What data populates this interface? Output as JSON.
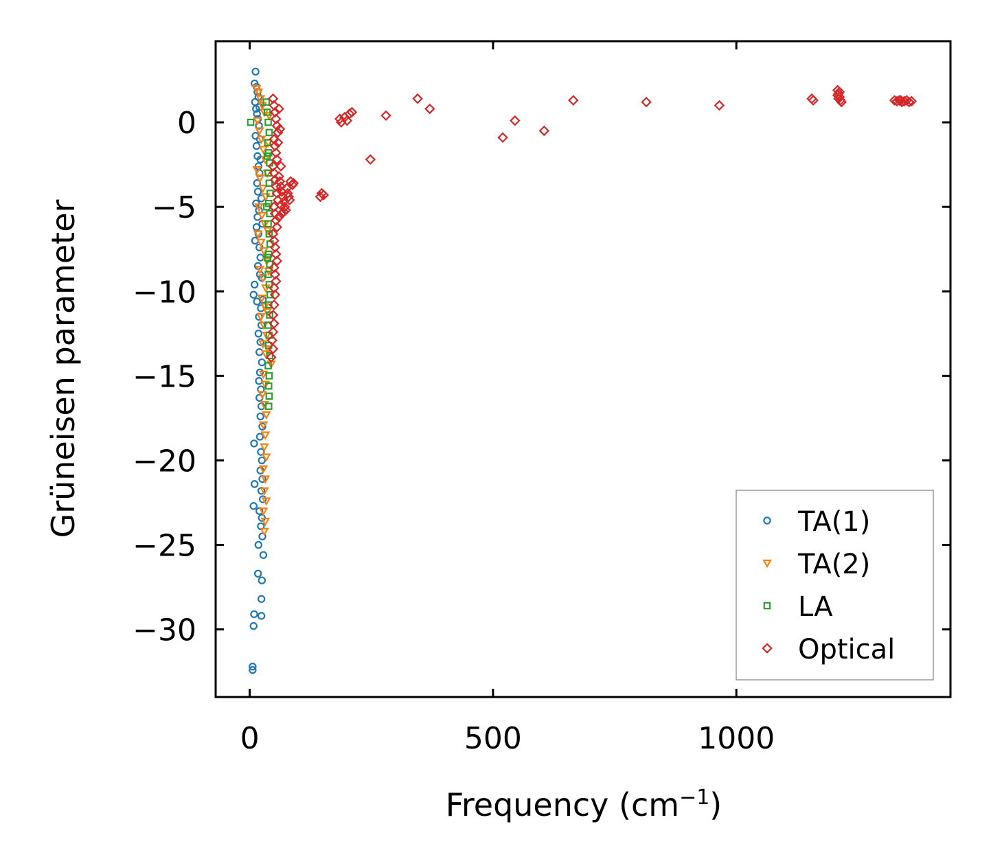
{
  "chart_data": {
    "type": "scatter",
    "title": "",
    "xlabel": "Frequency (cm",
    "xlabel_sup": "−1",
    "xlabel_close": ")",
    "ylabel": "Grüneisen parameter",
    "xlim": [
      -70,
      1440
    ],
    "ylim": [
      -34,
      4.8
    ],
    "x_ticks": [
      0,
      500,
      1000
    ],
    "x_tick_labels": [
      "0",
      "500",
      "1000"
    ],
    "y_ticks": [
      0,
      -5,
      -10,
      -15,
      -20,
      -25,
      -30
    ],
    "y_tick_labels": [
      "0",
      "−5",
      "−10",
      "−15",
      "−20",
      "−25",
      "−30"
    ],
    "legend_position": "lower-right",
    "series": [
      {
        "name": "TA(1)",
        "color": "#1f77b4",
        "marker": "circle",
        "points": [
          [
            12,
            3.0
          ],
          [
            10,
            2.3
          ],
          [
            14,
            2.1
          ],
          [
            16,
            1.8
          ],
          [
            18,
            1.5
          ],
          [
            11,
            1.2
          ],
          [
            13,
            0.8
          ],
          [
            15,
            0.5
          ],
          [
            17,
            0.2
          ],
          [
            19,
            -0.2
          ],
          [
            12,
            -0.8
          ],
          [
            14,
            -1.4
          ],
          [
            16,
            -2.0
          ],
          [
            18,
            -2.6
          ],
          [
            20,
            -3.0
          ],
          [
            15,
            -3.6
          ],
          [
            17,
            -4.1
          ],
          [
            13,
            -4.8
          ],
          [
            19,
            -5.2
          ],
          [
            16,
            -5.6
          ],
          [
            14,
            -6.2
          ],
          [
            18,
            -6.6
          ],
          [
            11,
            -7.0
          ],
          [
            20,
            -7.4
          ],
          [
            22,
            -8.0
          ],
          [
            17,
            -8.5
          ],
          [
            21,
            -9.0
          ],
          [
            10,
            -9.6
          ],
          [
            8,
            -10.2
          ],
          [
            15,
            -10.6
          ],
          [
            23,
            -11.0
          ],
          [
            19,
            -11.5
          ],
          [
            24,
            -12.0
          ],
          [
            18,
            -12.5
          ],
          [
            22,
            -13.0
          ],
          [
            20,
            -13.6
          ],
          [
            25,
            -14.2
          ],
          [
            21,
            -14.8
          ],
          [
            19,
            -15.3
          ],
          [
            23,
            -15.8
          ],
          [
            20,
            -16.3
          ],
          [
            24,
            -16.8
          ],
          [
            22,
            -17.4
          ],
          [
            26,
            -18.0
          ],
          [
            21,
            -18.6
          ],
          [
            9,
            -19.0
          ],
          [
            23,
            -19.5
          ],
          [
            25,
            -20.0
          ],
          [
            22,
            -20.6
          ],
          [
            26,
            -21.1
          ],
          [
            10,
            -21.4
          ],
          [
            24,
            -21.8
          ],
          [
            27,
            -22.3
          ],
          [
            8,
            -22.7
          ],
          [
            20,
            -23.0
          ],
          [
            25,
            -23.4
          ],
          [
            23,
            -23.9
          ],
          [
            26,
            -24.5
          ],
          [
            18,
            -25.0
          ],
          [
            28,
            -25.6
          ],
          [
            17,
            -26.7
          ],
          [
            25,
            -27.1
          ],
          [
            24,
            -28.2
          ],
          [
            9,
            -29.1
          ],
          [
            24,
            -29.2
          ],
          [
            8,
            -29.8
          ],
          [
            6,
            -32.2
          ],
          [
            6,
            -32.4
          ],
          [
            27,
            -10.5
          ],
          [
            25,
            -9.2
          ],
          [
            26,
            -6.0
          ],
          [
            24,
            -4.5
          ],
          [
            22,
            -2.2
          ],
          [
            20,
            0.9
          ],
          [
            21,
            -1.0
          ]
        ]
      },
      {
        "name": "TA(2)",
        "color": "#ff7f0e",
        "marker": "triangle-down",
        "points": [
          [
            14,
            2.0
          ],
          [
            18,
            1.8
          ],
          [
            22,
            1.4
          ],
          [
            26,
            1.0
          ],
          [
            30,
            0.6
          ],
          [
            16,
            0.1
          ],
          [
            20,
            -0.5
          ],
          [
            24,
            -1.0
          ],
          [
            28,
            -1.6
          ],
          [
            32,
            -2.2
          ],
          [
            15,
            -2.8
          ],
          [
            21,
            -3.3
          ],
          [
            27,
            -3.9
          ],
          [
            33,
            -4.4
          ],
          [
            19,
            -5.0
          ],
          [
            25,
            -5.5
          ],
          [
            31,
            -6.0
          ],
          [
            17,
            -6.6
          ],
          [
            23,
            -7.1
          ],
          [
            29,
            -7.6
          ],
          [
            35,
            -8.2
          ],
          [
            21,
            -8.7
          ],
          [
            27,
            -9.2
          ],
          [
            33,
            -9.8
          ],
          [
            25,
            -10.4
          ],
          [
            31,
            -10.9
          ],
          [
            23,
            -11.5
          ],
          [
            29,
            -12.0
          ],
          [
            35,
            -12.6
          ],
          [
            27,
            -13.1
          ],
          [
            33,
            -13.7
          ],
          [
            44,
            -14.3
          ],
          [
            28,
            -14.9
          ],
          [
            32,
            -15.5
          ],
          [
            26,
            -16.1
          ],
          [
            30,
            -16.7
          ],
          [
            34,
            -17.3
          ],
          [
            28,
            -17.9
          ],
          [
            32,
            -18.5
          ],
          [
            30,
            -19.2
          ],
          [
            34,
            -19.8
          ],
          [
            28,
            -20.5
          ],
          [
            32,
            -21.1
          ],
          [
            30,
            -21.8
          ],
          [
            34,
            -22.4
          ],
          [
            28,
            -23.0
          ],
          [
            32,
            -23.6
          ],
          [
            30,
            -24.2
          ],
          [
            36,
            -3.0
          ],
          [
            38,
            -1.2
          ],
          [
            40,
            0.4
          ],
          [
            37,
            -6.4
          ],
          [
            39,
            -8.8
          ],
          [
            36,
            -11.2
          ],
          [
            38,
            -13.4
          ]
        ]
      },
      {
        "name": "LA",
        "color": "#2ca02c",
        "marker": "square",
        "points": [
          [
            2,
            0.0
          ],
          [
            34,
            1.2
          ],
          [
            36,
            0.6
          ],
          [
            38,
            0.0
          ],
          [
            40,
            -0.6
          ],
          [
            37,
            -1.2
          ],
          [
            39,
            -1.8
          ],
          [
            41,
            -2.4
          ],
          [
            38,
            -3.0
          ],
          [
            40,
            -3.6
          ],
          [
            42,
            -4.2
          ],
          [
            39,
            -4.8
          ],
          [
            41,
            -5.4
          ],
          [
            38,
            -6.0
          ],
          [
            40,
            -6.6
          ],
          [
            42,
            -7.2
          ],
          [
            39,
            -7.8
          ],
          [
            41,
            -8.4
          ],
          [
            38,
            -9.0
          ],
          [
            40,
            -9.6
          ],
          [
            42,
            -10.2
          ],
          [
            39,
            -10.8
          ],
          [
            41,
            -11.4
          ],
          [
            38,
            -12.0
          ],
          [
            40,
            -12.6
          ],
          [
            39,
            -13.2
          ],
          [
            41,
            -13.8
          ],
          [
            38,
            -14.4
          ],
          [
            40,
            -15.0
          ],
          [
            39,
            -15.6
          ],
          [
            40,
            -16.2
          ],
          [
            39,
            -16.8
          ],
          [
            36,
            -2.0
          ],
          [
            35,
            -5.0
          ],
          [
            37,
            -8.0
          ]
        ]
      },
      {
        "name": "Optical",
        "color": "#d62728",
        "marker": "diamond",
        "points": [
          [
            48,
            1.4
          ],
          [
            50,
            1.0
          ],
          [
            52,
            0.6
          ],
          [
            54,
            0.2
          ],
          [
            56,
            -0.2
          ],
          [
            58,
            -0.6
          ],
          [
            50,
            -1.0
          ],
          [
            52,
            -1.4
          ],
          [
            54,
            -1.8
          ],
          [
            56,
            -2.2
          ],
          [
            48,
            -2.6
          ],
          [
            50,
            -3.0
          ],
          [
            52,
            -3.4
          ],
          [
            54,
            -3.8
          ],
          [
            56,
            -4.2
          ],
          [
            58,
            -4.6
          ],
          [
            50,
            -5.0
          ],
          [
            52,
            -5.4
          ],
          [
            54,
            -5.8
          ],
          [
            56,
            -6.2
          ],
          [
            48,
            -6.6
          ],
          [
            50,
            -7.0
          ],
          [
            52,
            -7.4
          ],
          [
            54,
            -7.8
          ],
          [
            56,
            -8.2
          ],
          [
            50,
            -8.6
          ],
          [
            52,
            -9.0
          ],
          [
            54,
            -9.4
          ],
          [
            50,
            -9.8
          ],
          [
            52,
            -10.2
          ],
          [
            50,
            -10.8
          ],
          [
            48,
            -11.4
          ],
          [
            50,
            -11.9
          ],
          [
            48,
            -12.4
          ],
          [
            46,
            -12.9
          ],
          [
            48,
            -13.4
          ],
          [
            44,
            -13.9
          ],
          [
            60,
            -3.2
          ],
          [
            62,
            -3.5
          ],
          [
            64,
            -3.8
          ],
          [
            66,
            -4.1
          ],
          [
            68,
            -4.4
          ],
          [
            70,
            -4.7
          ],
          [
            72,
            -5.0
          ],
          [
            74,
            -5.2
          ],
          [
            66,
            -5.4
          ],
          [
            60,
            -5.6
          ],
          [
            76,
            -3.9
          ],
          [
            78,
            -4.2
          ],
          [
            80,
            -4.4
          ],
          [
            82,
            -4.6
          ],
          [
            64,
            -4.9
          ],
          [
            70,
            -5.3
          ],
          [
            58,
            -1.2
          ],
          [
            60,
            0.8
          ],
          [
            62,
            -0.4
          ],
          [
            64,
            -2.6
          ],
          [
            84,
            -3.5
          ],
          [
            88,
            -3.7
          ],
          [
            90,
            -3.6
          ],
          [
            148,
            -4.2
          ],
          [
            152,
            -4.3
          ],
          [
            145,
            -4.4
          ],
          [
            185,
            0.2
          ],
          [
            195,
            0.3
          ],
          [
            205,
            0.5
          ],
          [
            210,
            0.6
          ],
          [
            200,
            0.1
          ],
          [
            188,
            0.0
          ],
          [
            248,
            -2.2
          ],
          [
            280,
            0.4
          ],
          [
            345,
            1.4
          ],
          [
            370,
            0.8
          ],
          [
            520,
            -0.9
          ],
          [
            545,
            0.1
          ],
          [
            605,
            -0.5
          ],
          [
            665,
            1.3
          ],
          [
            815,
            1.2
          ],
          [
            965,
            1.0
          ],
          [
            1155,
            1.4
          ],
          [
            1158,
            1.3
          ],
          [
            1208,
            1.9
          ],
          [
            1210,
            1.7
          ],
          [
            1212,
            1.5
          ],
          [
            1214,
            1.3
          ],
          [
            1216,
            1.2
          ],
          [
            1210,
            1.4
          ],
          [
            1208,
            1.6
          ],
          [
            1212,
            1.8
          ],
          [
            1325,
            1.3
          ],
          [
            1330,
            1.25
          ],
          [
            1335,
            1.3
          ],
          [
            1340,
            1.2
          ],
          [
            1345,
            1.25
          ],
          [
            1350,
            1.3
          ],
          [
            1355,
            1.2
          ],
          [
            1360,
            1.25
          ],
          [
            1338,
            1.3
          ]
        ]
      }
    ]
  }
}
